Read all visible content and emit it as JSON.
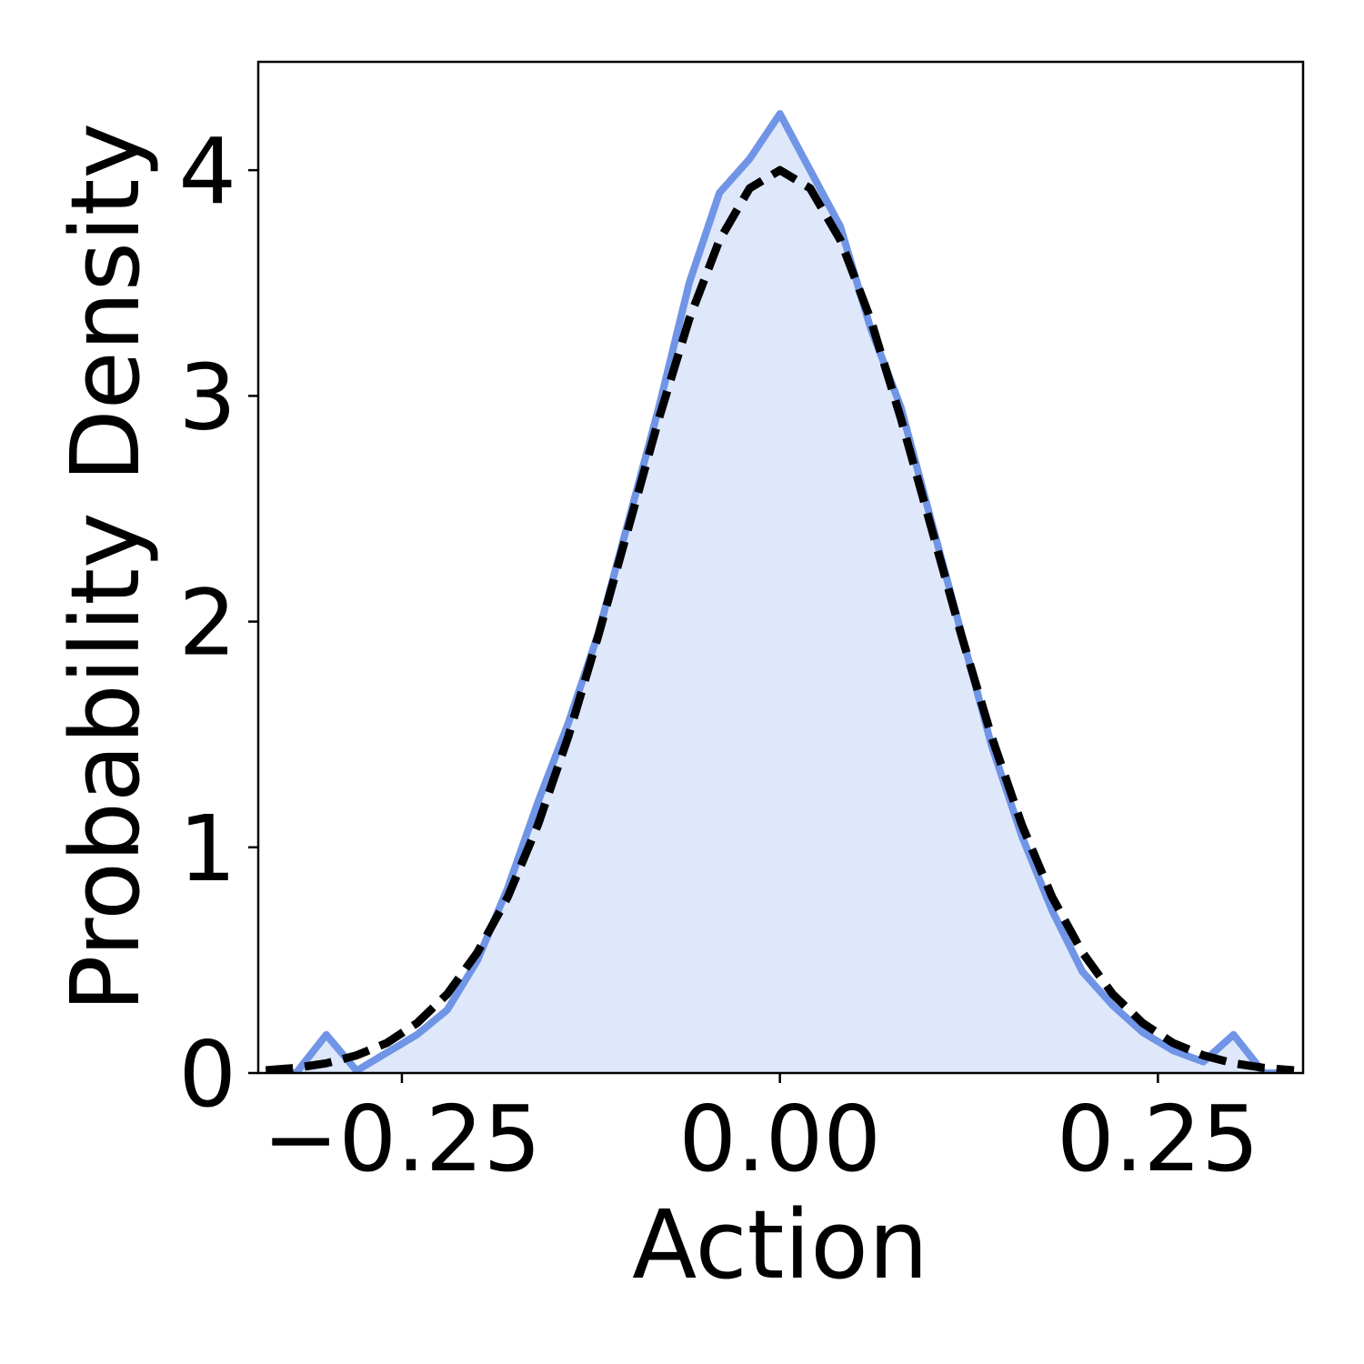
{
  "chart_data": {
    "type": "line",
    "xlabel": "Action",
    "ylabel": "Probability Density",
    "x": [
      -0.34,
      -0.32,
      -0.3,
      -0.28,
      -0.26,
      -0.24,
      -0.22,
      -0.2,
      -0.18,
      -0.16,
      -0.14,
      -0.12,
      -0.1,
      -0.08,
      -0.06,
      -0.04,
      -0.02,
      0,
      0.02,
      0.04,
      0.06,
      0.08,
      0.1,
      0.12,
      0.14,
      0.16,
      0.18,
      0.2,
      0.22,
      0.24,
      0.26,
      0.28,
      0.3,
      0.32,
      0.34
    ],
    "series": [
      {
        "color": "#7095e6",
        "fill": "#dfe8fa",
        "dashed": false,
        "values": [
          0,
          0,
          0.17,
          0.01,
          0.09,
          0.17,
          0.28,
          0.5,
          0.82,
          1.2,
          1.55,
          1.95,
          2.45,
          2.95,
          3.5,
          3.9,
          4.05,
          4.25,
          4.0,
          3.75,
          3.3,
          2.95,
          2.45,
          1.95,
          1.45,
          1.05,
          0.72,
          0.45,
          0.3,
          0.18,
          0.1,
          0.05,
          0.17,
          0,
          0
        ]
      },
      {
        "color": "#000000",
        "fill": null,
        "dashed": true,
        "values": [
          0.012,
          0.023,
          0.043,
          0.078,
          0.133,
          0.221,
          0.35,
          0.535,
          0.78,
          1.1,
          1.49,
          1.94,
          2.42,
          2.9,
          3.34,
          3.69,
          3.92,
          4,
          3.92,
          3.69,
          3.34,
          2.9,
          2.42,
          1.94,
          1.49,
          1.1,
          0.78,
          0.535,
          0.35,
          0.221,
          0.133,
          0.078,
          0.043,
          0.023,
          0.012
        ]
      }
    ],
    "xlim": [
      -0.345,
      0.346
    ],
    "ylim": [
      0,
      4.48
    ],
    "xticks": [
      {
        "value": -0.25,
        "label": "−0.25"
      },
      {
        "value": 0,
        "label": "0.00"
      },
      0.25
    ],
    "yticks": [
      0,
      1,
      2,
      3,
      4
    ]
  }
}
